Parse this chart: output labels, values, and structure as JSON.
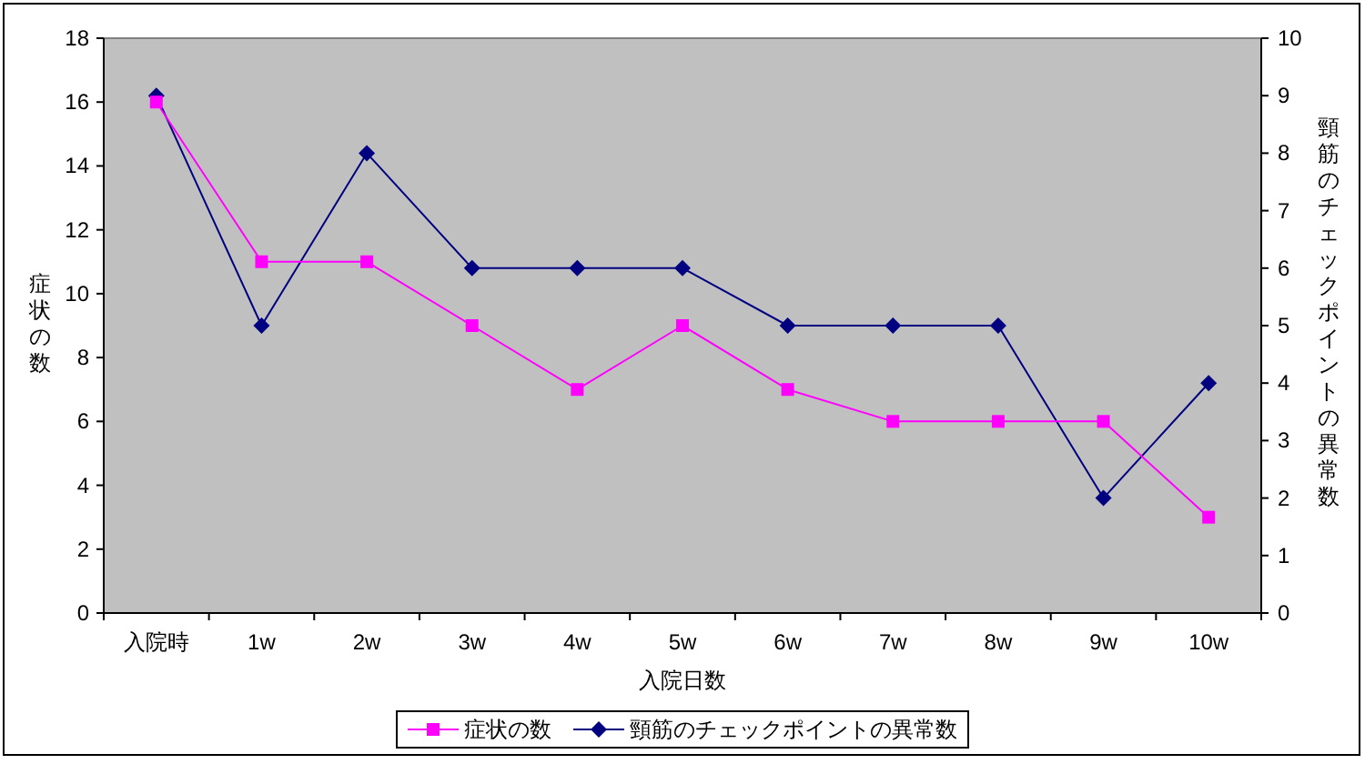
{
  "chart_data": {
    "type": "line",
    "categories": [
      "入院時",
      "1w",
      "2w",
      "3w",
      "4w",
      "5w",
      "6w",
      "7w",
      "8w",
      "9w",
      "10w"
    ],
    "xlabel": "入院日数",
    "ylabel": "症状の数",
    "y2label": "頸筋のチェックポイントの異常数",
    "ylim": [
      0,
      18
    ],
    "yticks": [
      0,
      2,
      4,
      6,
      8,
      10,
      12,
      14,
      16,
      18
    ],
    "y2lim": [
      0,
      10
    ],
    "y2ticks": [
      0,
      1,
      2,
      3,
      4,
      5,
      6,
      7,
      8,
      9,
      10
    ],
    "legend": "bottom",
    "series": [
      {
        "name": "症状の数",
        "color": "#ff00ff",
        "marker": "square",
        "values": [
          16,
          11,
          11,
          9,
          7,
          9,
          7,
          6,
          6,
          6,
          3
        ]
      },
      {
        "name": "頸筋のチェックポイントの異常数",
        "color": "#000080",
        "marker": "diamond",
        "axis": "y2",
        "values": [
          9,
          5,
          8,
          6,
          6,
          6,
          5,
          5,
          5,
          2,
          4
        ]
      }
    ]
  }
}
